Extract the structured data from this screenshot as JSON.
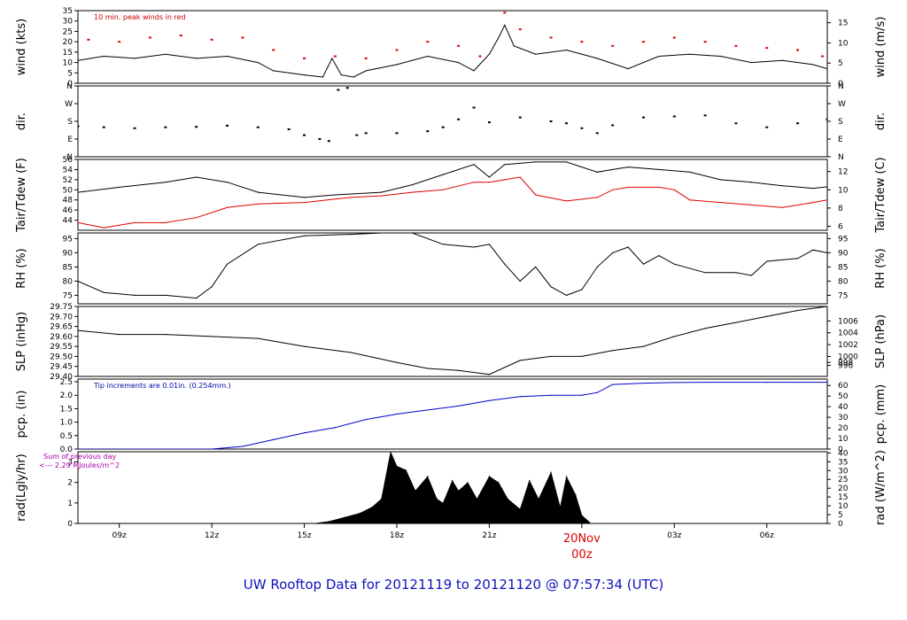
{
  "chart_data": {
    "type": "line",
    "title": "UW Rooftop Data for 20121119  to  20121120 @ 07:57:34  (UTC)",
    "x_axis": {
      "range_hours": [
        7.66,
        31.96
      ],
      "ticks": [
        {
          "h": 9,
          "label": "09z"
        },
        {
          "h": 12,
          "label": "12z"
        },
        {
          "h": 15,
          "label": "15z"
        },
        {
          "h": 18,
          "label": "18z"
        },
        {
          "h": 21,
          "label": "21z"
        },
        {
          "h": 27,
          "label": "03z"
        },
        {
          "h": 30,
          "label": "06z"
        }
      ],
      "day_marker": {
        "h": 24,
        "date": "20Nov",
        "time": "00z",
        "color": "#dd0000"
      }
    },
    "panels": [
      {
        "id": "wind",
        "left_label": "wind (kts)",
        "right_label": "wind (m/s)",
        "ylim": [
          0,
          35
        ],
        "left_ticks": [
          "0",
          "5",
          "10",
          "15",
          "20",
          "25",
          "30",
          "35"
        ],
        "right_ticks": [
          {
            "v": 0,
            "label": "0"
          },
          {
            "v": 9.72,
            "label": "5"
          },
          {
            "v": 19.44,
            "label": "10"
          },
          {
            "v": 29.16,
            "label": "15"
          }
        ],
        "annotation": {
          "text": "10 min. peak winds in red",
          "color": "#cc0000"
        },
        "series": [
          {
            "name": "wind speed",
            "color": "#000000",
            "style": "line",
            "x": [
              7.66,
              8.5,
              9.5,
              10.5,
              11.5,
              12.5,
              13.5,
              14.0,
              15.0,
              15.6,
              15.9,
              16.2,
              16.6,
              17.0,
              18.0,
              19.0,
              20.0,
              20.5,
              21.0,
              21.3,
              21.5,
              21.8,
              22.5,
              23.5,
              24.5,
              25.5,
              26.5,
              27.5,
              28.5,
              29.5,
              30.5,
              31.5,
              31.96
            ],
            "y": [
              11,
              13,
              12,
              14,
              12,
              13,
              10,
              6,
              4,
              3,
              12,
              4,
              3,
              6,
              9,
              13,
              10,
              6,
              14,
              22,
              28,
              18,
              14,
              16,
              12,
              7,
              13,
              14,
              13,
              10,
              11,
              9,
              7
            ]
          },
          {
            "name": "10 min. peak winds",
            "color": "#dd0000",
            "style": "dots",
            "x": [
              8.0,
              9.0,
              10.0,
              11.0,
              12.0,
              13.0,
              14.0,
              15.0,
              16.0,
              17.0,
              18.0,
              19.0,
              20.0,
              20.7,
              21.5,
              22.0,
              23.0,
              24.0,
              25.0,
              26.0,
              27.0,
              28.0,
              29.0,
              30.0,
              31.0,
              31.8
            ],
            "y": [
              21,
              20,
              22,
              23,
              21,
              22,
              16,
              12,
              13,
              12,
              16,
              20,
              18,
              13,
              34,
              26,
              22,
              20,
              18,
              20,
              22,
              20,
              18,
              17,
              16,
              13
            ]
          }
        ]
      },
      {
        "id": "dir",
        "left_label": "dir.",
        "right_label": "dir.",
        "ylim": [
          0,
          360
        ],
        "left_ticks": [
          "N",
          "E",
          "S",
          "W",
          "N"
        ],
        "right_ticks": [
          {
            "v": 0,
            "label": "N"
          },
          {
            "v": 90,
            "label": "E"
          },
          {
            "v": 180,
            "label": "S"
          },
          {
            "v": 270,
            "label": "W"
          },
          {
            "v": 360,
            "label": "N"
          }
        ],
        "series": [
          {
            "name": "wind direction",
            "color": "#000000",
            "style": "dots",
            "x": [
              7.66,
              8.5,
              9.5,
              10.5,
              11.5,
              12.5,
              13.5,
              14.5,
              15.0,
              15.5,
              15.8,
              16.1,
              16.4,
              16.7,
              17.0,
              18.0,
              19.0,
              19.5,
              20.0,
              20.5,
              21.0,
              22.0,
              23.0,
              23.5,
              24.0,
              24.5,
              25.0,
              26.0,
              27.0,
              28.0,
              29.0,
              30.0,
              31.0,
              31.96
            ],
            "y": [
              155,
              150,
              145,
              150,
              152,
              158,
              150,
              140,
              110,
              90,
              80,
              340,
              350,
              110,
              120,
              120,
              130,
              150,
              190,
              250,
              175,
              200,
              180,
              170,
              145,
              120,
              160,
              200,
              205,
              210,
              170,
              150,
              170,
              190
            ]
          }
        ]
      },
      {
        "id": "temp",
        "left_label": "Tair/Tdew (F)",
        "right_label": "Tair/Tdew (C)",
        "ylim": [
          42,
          56
        ],
        "left_ticks": [
          "44",
          "46",
          "48",
          "50",
          "52",
          "54",
          "56"
        ],
        "right_ticks": [
          {
            "v": 42.8,
            "label": "6"
          },
          {
            "v": 46.4,
            "label": "8"
          },
          {
            "v": 50.0,
            "label": "10"
          },
          {
            "v": 53.6,
            "label": "12"
          }
        ],
        "series": [
          {
            "name": "Tair",
            "color": "#000000",
            "style": "line",
            "x": [
              7.66,
              9.0,
              10.5,
              11.5,
              12.5,
              13.5,
              15.0,
              16.0,
              17.5,
              18.5,
              19.5,
              20.5,
              21.0,
              21.5,
              22.5,
              23.5,
              24.5,
              25.0,
              25.5,
              26.5,
              27.5,
              28.5,
              29.5,
              30.5,
              31.5,
              31.96
            ],
            "y": [
              49.5,
              50.5,
              51.5,
              52.5,
              51.5,
              49.5,
              48.5,
              49,
              49.5,
              51,
              53,
              55,
              52.5,
              55,
              55.5,
              55.5,
              53.5,
              54,
              54.5,
              54,
              53.5,
              52,
              51.5,
              50.8,
              50.3,
              50.6
            ]
          },
          {
            "name": "Tdew",
            "color": "#dd0000",
            "style": "line",
            "x": [
              7.66,
              8.5,
              9.5,
              10.5,
              11.5,
              12.5,
              13.5,
              15.0,
              16.5,
              17.5,
              18.5,
              19.5,
              20.5,
              21.0,
              21.5,
              22.0,
              22.5,
              23.5,
              24.5,
              25.0,
              25.5,
              26.5,
              27.0,
              27.5,
              28.5,
              29.5,
              30.5,
              31.5,
              31.96
            ],
            "y": [
              43.5,
              42.5,
              43.5,
              43.5,
              44.5,
              46.5,
              47.2,
              47.5,
              48.5,
              48.8,
              49.5,
              50,
              51.5,
              51.5,
              52,
              52.5,
              49,
              47.8,
              48.5,
              50,
              50.5,
              50.5,
              50,
              48,
              47.5,
              47,
              46.5,
              47.5,
              48
            ]
          }
        ]
      },
      {
        "id": "rh",
        "left_label": "RH (%)",
        "right_label": "RH (%)",
        "ylim": [
          72,
          97
        ],
        "left_ticks": [
          "75",
          "80",
          "85",
          "90",
          "95"
        ],
        "right_ticks": [
          {
            "v": 75,
            "label": "75"
          },
          {
            "v": 80,
            "label": "80"
          },
          {
            "v": 85,
            "label": "85"
          },
          {
            "v": 90,
            "label": "90"
          },
          {
            "v": 95,
            "label": "95"
          }
        ],
        "series": [
          {
            "name": "RH",
            "color": "#000000",
            "style": "line",
            "x": [
              7.66,
              8.5,
              9.5,
              10.5,
              11.5,
              12.0,
              12.5,
              13.5,
              15.0,
              16.5,
              17.5,
              18.5,
              19.5,
              20.5,
              21.0,
              21.5,
              22.0,
              22.5,
              23.0,
              23.5,
              24.0,
              24.5,
              25.0,
              25.5,
              26.0,
              26.5,
              27.0,
              28.0,
              29.0,
              29.5,
              30.0,
              31.0,
              31.5,
              31.96
            ],
            "y": [
              80,
              76,
              75,
              75,
              74,
              78,
              86,
              93,
              96,
              96.5,
              97,
              97,
              93,
              92,
              93,
              86,
              80,
              85,
              78,
              75,
              77,
              85,
              90,
              92,
              86,
              89,
              86,
              83,
              83,
              82,
              87,
              88,
              91,
              90
            ]
          }
        ]
      },
      {
        "id": "slp",
        "left_label": "SLP (inHg)",
        "right_label": "SLP (hPa)",
        "ylim": [
          29.4,
          29.75
        ],
        "left_ticks": [
          "29.40",
          "29.45",
          "29.50",
          "29.55",
          "29.60",
          "29.65",
          "29.70",
          "29.75"
        ],
        "right_ticks": [
          {
            "v": 29.4555,
            "label": "996"
          },
          {
            "v": 29.4704,
            "label": "998"
          },
          {
            "v": 29.5001,
            "label": "1000"
          },
          {
            "v": 29.5591,
            "label": "1002"
          },
          {
            "v": 29.6182,
            "label": "1004"
          },
          {
            "v": 29.6773,
            "label": "1006"
          }
        ],
        "series": [
          {
            "name": "SLP",
            "color": "#000000",
            "style": "line",
            "x": [
              7.66,
              9.0,
              10.5,
              12.0,
              13.5,
              15.0,
              16.5,
              18.0,
              19.0,
              20.0,
              21.0,
              22.0,
              23.0,
              24.0,
              25.0,
              26.0,
              27.0,
              28.0,
              29.0,
              30.0,
              31.0,
              31.96
            ],
            "y": [
              29.63,
              29.61,
              29.61,
              29.6,
              29.59,
              29.55,
              29.52,
              29.47,
              29.44,
              29.43,
              29.41,
              29.48,
              29.5,
              29.5,
              29.53,
              29.55,
              29.6,
              29.64,
              29.67,
              29.7,
              29.73,
              29.75
            ]
          }
        ]
      },
      {
        "id": "pcp",
        "left_label": "pcp. (in)",
        "right_label": "pcp. (mm)",
        "ylim": [
          0,
          2.6
        ],
        "left_ticks": [
          "0.0",
          "0.5",
          "1.0",
          "1.5",
          "2.0",
          "2.5"
        ],
        "right_ticks": [
          {
            "v": 0,
            "label": "0"
          },
          {
            "v": 0.394,
            "label": "10"
          },
          {
            "v": 0.787,
            "label": "20"
          },
          {
            "v": 1.181,
            "label": "30"
          },
          {
            "v": 1.575,
            "label": "40"
          },
          {
            "v": 1.969,
            "label": "50"
          },
          {
            "v": 2.362,
            "label": "60"
          }
        ],
        "annotation": {
          "text": "Tip increments are 0.01in. (0.254mm.)",
          "color": "#0000aa"
        },
        "series": [
          {
            "name": "cumulative precipitation",
            "color": "#0000cc",
            "style": "line",
            "x": [
              7.66,
              12.0,
              13.0,
              14.0,
              15.0,
              16.0,
              17.0,
              18.0,
              19.0,
              20.0,
              21.0,
              22.0,
              23.0,
              24.0,
              24.5,
              25.0,
              26.0,
              27.0,
              28.0,
              29.0,
              30.0,
              31.0,
              31.96
            ],
            "y": [
              0,
              0,
              0.1,
              0.35,
              0.6,
              0.8,
              1.1,
              1.3,
              1.45,
              1.6,
              1.8,
              1.95,
              2.0,
              2.0,
              2.1,
              2.4,
              2.45,
              2.47,
              2.48,
              2.48,
              2.48,
              2.48,
              2.48
            ]
          }
        ]
      },
      {
        "id": "rad",
        "left_label": "rad(Lgly/hr)",
        "right_label": "rad (W/m^2)",
        "ylim": [
          0,
          3.5
        ],
        "left_ticks": [
          "0",
          "1",
          "2",
          "3"
        ],
        "right_ticks": [
          {
            "v": 0,
            "label": "0"
          },
          {
            "v": 0.43,
            "label": "5"
          },
          {
            "v": 0.86,
            "label": "10"
          },
          {
            "v": 1.29,
            "label": "15"
          },
          {
            "v": 1.72,
            "label": "20"
          },
          {
            "v": 2.15,
            "label": "25"
          },
          {
            "v": 2.58,
            "label": "30"
          },
          {
            "v": 3.01,
            "label": "35"
          },
          {
            "v": 3.44,
            "label": "40"
          }
        ],
        "annotation": {
          "text": "Sum of previous day",
          "text2": "<--- 2.29 MJoules/m^2",
          "color": "#aa00aa"
        },
        "series": [
          {
            "name": "solar radiation",
            "color": "#000000",
            "style": "area",
            "x": [
              15.3,
              15.8,
              16.3,
              16.8,
              17.2,
              17.5,
              17.8,
              18.0,
              18.3,
              18.6,
              19.0,
              19.3,
              19.5,
              19.8,
              20.0,
              20.3,
              20.6,
              21.0,
              21.3,
              21.6,
              22.0,
              22.3,
              22.6,
              23.0,
              23.3,
              23.5,
              23.8,
              24.0,
              24.3
            ],
            "y": [
              0,
              0.1,
              0.3,
              0.5,
              0.8,
              1.2,
              3.5,
              2.8,
              2.6,
              1.6,
              2.3,
              1.2,
              1.0,
              2.1,
              1.6,
              2.0,
              1.2,
              2.3,
              2.0,
              1.2,
              0.7,
              2.1,
              1.2,
              2.5,
              0.8,
              2.3,
              1.4,
              0.4,
              0.0
            ]
          }
        ]
      }
    ]
  }
}
